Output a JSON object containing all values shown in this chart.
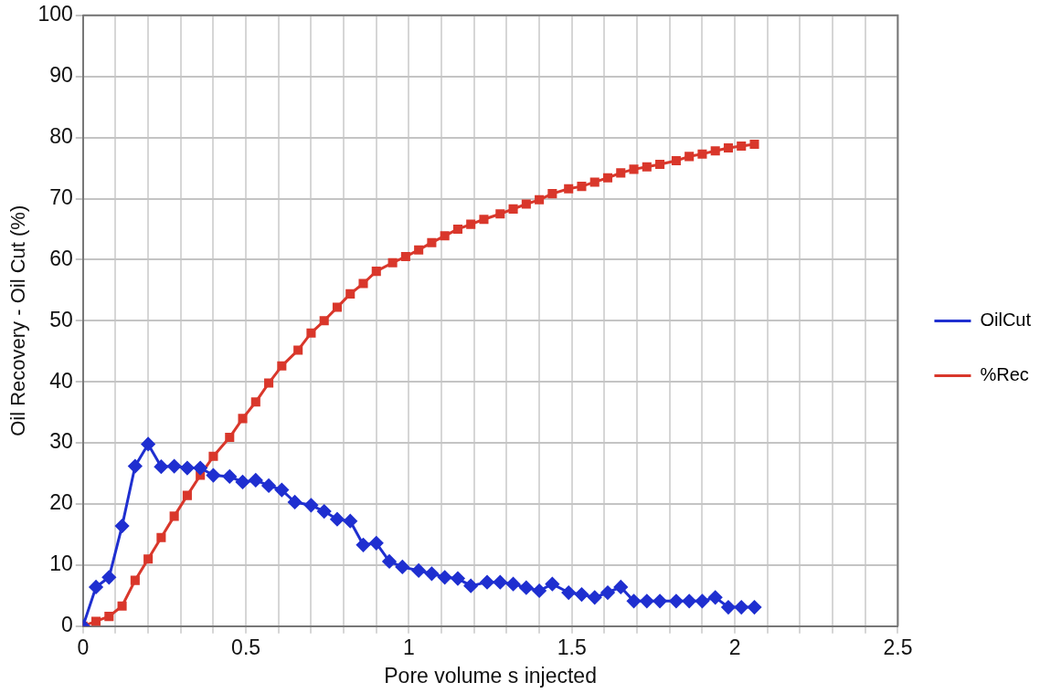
{
  "chart_data": {
    "type": "line",
    "xlabel": "Pore volume s injected",
    "ylabel": "Oil Recovery - Oil Cut (%)",
    "xlim": [
      0,
      2.5
    ],
    "xticks": [
      0,
      {
        "value": 0.1,
        "label": null
      },
      {
        "value": 0.2,
        "label": null
      },
      {
        "value": 0.3,
        "label": null
      },
      {
        "value": 0.4,
        "label": null
      },
      0.5,
      {
        "value": 0.6,
        "label": null
      },
      {
        "value": 0.7,
        "label": null
      },
      {
        "value": 0.8,
        "label": null
      },
      {
        "value": 0.9,
        "label": null
      },
      1,
      {
        "value": 1.1,
        "label": null
      },
      {
        "value": 1.2,
        "label": null
      },
      {
        "value": 1.3,
        "label": null
      },
      {
        "value": 1.4,
        "label": null
      },
      1.5,
      {
        "value": 1.6,
        "label": null
      },
      {
        "value": 1.7,
        "label": null
      },
      {
        "value": 1.8,
        "label": null
      },
      {
        "value": 1.9,
        "label": null
      },
      2,
      {
        "value": 2.1,
        "label": null
      },
      {
        "value": 2.2,
        "label": null
      },
      {
        "value": 2.3,
        "label": null
      },
      {
        "value": 2.4,
        "label": null
      },
      2.5
    ],
    "ylim": [
      0,
      100
    ],
    "yticks": [
      0,
      10,
      20,
      30,
      40,
      50,
      60,
      70,
      80,
      90,
      100
    ],
    "grid": true,
    "legend": "right",
    "line_style": "solid",
    "series": [
      {
        "name": "OilCut",
        "color": "#1f2fd0",
        "marker": "diamond",
        "x": [
          0,
          0.04,
          0.08,
          0.12,
          0.16,
          0.2,
          0.24,
          0.28,
          0.32,
          0.36,
          0.4,
          0.45,
          0.49,
          0.53,
          0.57,
          0.61,
          0.65,
          0.7,
          0.74,
          0.78,
          0.82,
          0.86,
          0.9,
          0.94,
          0.98,
          1.03,
          1.07,
          1.11,
          1.15,
          1.19,
          1.24,
          1.28,
          1.32,
          1.36,
          1.4,
          1.44,
          1.49,
          1.53,
          1.57,
          1.61,
          1.65,
          1.69,
          1.73,
          1.77,
          1.82,
          1.86,
          1.9,
          1.94,
          1.98,
          2.02,
          2.06
        ],
        "values": [
          0,
          6.4,
          8,
          16.4,
          26.2,
          29.8,
          26.1,
          26.2,
          25.9,
          25.9,
          24.7,
          24.5,
          23.6,
          23.9,
          23,
          22.3,
          20.3,
          19.8,
          18.8,
          17.5,
          17.2,
          13.3,
          13.6,
          10.6,
          9.7,
          9.1,
          8.6,
          8,
          7.8,
          6.6,
          7.2,
          7.2,
          6.9,
          6.3,
          5.8,
          6.9,
          5.5,
          5.2,
          4.7,
          5.5,
          6.4,
          4.1,
          4.1,
          4.1,
          4.1,
          4.1,
          4.1,
          4.7,
          3.1,
          3.1,
          3.1
        ]
      },
      {
        "name": "%Rec",
        "color": "#d9372b",
        "marker": "square",
        "x": [
          0,
          0.04,
          0.08,
          0.12,
          0.16,
          0.2,
          0.24,
          0.28,
          0.32,
          0.36,
          0.4,
          0.45,
          0.49,
          0.53,
          0.57,
          0.61,
          0.66,
          0.7,
          0.74,
          0.78,
          0.82,
          0.86,
          0.9,
          0.95,
          0.99,
          1.03,
          1.07,
          1.11,
          1.15,
          1.19,
          1.23,
          1.28,
          1.32,
          1.36,
          1.4,
          1.44,
          1.49,
          1.53,
          1.57,
          1.61,
          1.65,
          1.69,
          1.73,
          1.77,
          1.82,
          1.86,
          1.9,
          1.94,
          1.98,
          2.02,
          2.06
        ],
        "values": [
          0,
          0.8,
          1.6,
          3.3,
          7.5,
          11,
          14.5,
          18,
          21.4,
          24.7,
          27.8,
          30.9,
          34,
          36.7,
          39.8,
          42.6,
          45.2,
          48,
          50,
          52.2,
          54.4,
          56.1,
          58.1,
          59.5,
          60.5,
          61.6,
          62.8,
          63.9,
          65,
          65.8,
          66.6,
          67.5,
          68.3,
          69.1,
          69.8,
          70.8,
          71.6,
          72,
          72.7,
          73.4,
          74.2,
          74.8,
          75.2,
          75.6,
          76.2,
          76.9,
          77.3,
          77.8,
          78.3,
          78.6,
          78.9
        ]
      }
    ]
  }
}
